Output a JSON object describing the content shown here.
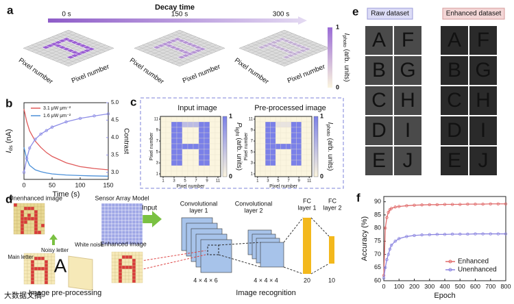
{
  "panel_labels": [
    "a",
    "b",
    "c",
    "d",
    "e",
    "f"
  ],
  "panel_a": {
    "title": "Decay time",
    "times": [
      "0 s",
      "150 s",
      "300 s"
    ],
    "axis_label": "Pixel number",
    "colorbar": {
      "label": [
        "I",
        "photo",
        " (arb. units)"
      ],
      "ticks": [
        0,
        1
      ]
    }
  },
  "panel_d": {
    "unenhanced": "Unenhanced image",
    "sensor": "Sensor Array Model",
    "input": "Input",
    "noisy": "Noisy letter",
    "white_noise": "White noise",
    "main_letter": "Main letter",
    "enhanced": "Enhanced image",
    "preprocessing": "Image pre-processing",
    "conv1": [
      "Convolutional",
      "layer 1"
    ],
    "conv2": [
      "Convolutional",
      "layer 2"
    ],
    "fc1": [
      "FC",
      "layer 1"
    ],
    "fc2": [
      "FC",
      "layer 2"
    ],
    "dims": [
      "4 × 4 × 6",
      "4 × 4 × 4",
      "20",
      "10"
    ],
    "recognition": "Image recognition",
    "letter": "A"
  },
  "panel_e": {
    "raw": "Raw dataset",
    "enhanced": "Enhanced dataset",
    "letters": [
      [
        "A",
        "F"
      ],
      [
        "B",
        "G"
      ],
      [
        "C",
        "H"
      ],
      [
        "D",
        "I"
      ],
      [
        "E",
        "J"
      ]
    ]
  },
  "watermark": "大数据文摘",
  "chart_data": [
    {
      "type": "line",
      "x_label": "Time (s)",
      "y_label": [
        "I",
        "ds",
        " (nA)"
      ],
      "y2_label": "Contrast",
      "x": [
        0,
        5,
        10,
        20,
        30,
        40,
        50,
        75,
        100,
        125,
        150
      ],
      "xlim": [
        0,
        150
      ],
      "xticks": [
        0,
        50,
        100,
        150
      ],
      "ylim": [
        0,
        60
      ],
      "y2lim": [
        2.8,
        5.0
      ],
      "y2ticks": [
        {
          "value": 3,
          "label": "3.0"
        },
        {
          "value": 3.5,
          "label": "3.5"
        },
        {
          "value": 4,
          "label": "4.0"
        },
        {
          "value": 4.5,
          "label": "4.5"
        },
        {
          "value": 5,
          "label": "5.0"
        }
      ],
      "legend": "upper right",
      "series": [
        {
          "name": "3.1 μW μm⁻²",
          "color": "#e05a5a",
          "values": [
            55,
            45,
            38,
            30,
            25,
            21,
            18,
            13,
            10,
            8.5,
            7.5
          ]
        },
        {
          "name": "1.6 μW μm⁻²",
          "color": "#4a8fd8",
          "values": [
            25,
            16,
            11,
            7.5,
            6,
            5,
            4.3,
            3.4,
            3,
            2.7,
            2.5
          ]
        },
        {
          "color": "#8c8ce6",
          "axis": "y2",
          "values": [
            3.0,
            3.4,
            3.7,
            3.95,
            4.1,
            4.2,
            4.3,
            4.45,
            4.55,
            4.62,
            4.68
          ]
        }
      ]
    },
    {
      "type": "heatmap",
      "title": "Input image",
      "x_label": "Pixel number",
      "y_label": "Pixel number",
      "color": "#7a80e8",
      "xlim": [
        0.5,
        11.5
      ],
      "ylim": [
        0.5,
        11.5
      ],
      "xticks": [
        1,
        3,
        5,
        7,
        9,
        11
      ],
      "yticks": [
        1,
        3,
        5,
        7,
        9,
        11
      ],
      "colorbar": {
        "label": [
          "P",
          "light",
          " (arb. units)"
        ],
        "ticks": [
          0,
          1
        ]
      },
      "values": [
        [
          0,
          0,
          0,
          0,
          0,
          0,
          0,
          0,
          0,
          0,
          0
        ],
        [
          0,
          0,
          1,
          1,
          0.5,
          0.5,
          0.5,
          1,
          1,
          0,
          0
        ],
        [
          0,
          0,
          1,
          1,
          0,
          0,
          0,
          1,
          1,
          0,
          0
        ],
        [
          0,
          0,
          1,
          1,
          0,
          0,
          0,
          1,
          1,
          0,
          0
        ],
        [
          0,
          0,
          1,
          1,
          0,
          0,
          0,
          1,
          1,
          0,
          0
        ],
        [
          0,
          0,
          1,
          1,
          1,
          1,
          1,
          1,
          1,
          0,
          0
        ],
        [
          0,
          0,
          1,
          1,
          0,
          0,
          0,
          1,
          1,
          0,
          0
        ],
        [
          0,
          0,
          1,
          1,
          0,
          0,
          0,
          1,
          1,
          0,
          0
        ],
        [
          0,
          0,
          1,
          1,
          0,
          0,
          0,
          1,
          1,
          0,
          0
        ],
        [
          0,
          0,
          0,
          0,
          0,
          0,
          0,
          0,
          0,
          0,
          0
        ],
        [
          0,
          0,
          0,
          0,
          0,
          0,
          0,
          0,
          0,
          0,
          0
        ]
      ]
    },
    {
      "type": "heatmap",
      "title": "Pre-processed image",
      "x_label": "Pixel number",
      "y_label": "Pixel number",
      "color": "#7a80e8",
      "xlim": [
        0.5,
        11.5
      ],
      "ylim": [
        0.5,
        11.5
      ],
      "xticks": [
        1,
        3,
        5,
        7,
        9,
        11
      ],
      "yticks": [
        1,
        3,
        5,
        7,
        9,
        11
      ],
      "colorbar": {
        "label": [
          "I",
          "photo",
          " (arb. units)"
        ],
        "ticks": [
          0,
          1
        ]
      },
      "values": [
        [
          0,
          0,
          0,
          0,
          0,
          0,
          0,
          0,
          0,
          0,
          0
        ],
        [
          0,
          0,
          1,
          1,
          0.15,
          0.15,
          0.15,
          1,
          1,
          0,
          0
        ],
        [
          0,
          0,
          1,
          1,
          0,
          0,
          0,
          1,
          1,
          0,
          0
        ],
        [
          0,
          0,
          1,
          1,
          0,
          0,
          0,
          1,
          1,
          0,
          0
        ],
        [
          0,
          0,
          1,
          1,
          0,
          0,
          0,
          1,
          1,
          0,
          0
        ],
        [
          0,
          0,
          1,
          1,
          1,
          1,
          1,
          1,
          1,
          0,
          0
        ],
        [
          0,
          0,
          1,
          1,
          0,
          0,
          0,
          1,
          1,
          0,
          0
        ],
        [
          0,
          0,
          1,
          1,
          0,
          0,
          0,
          1,
          1,
          0,
          0
        ],
        [
          0,
          0,
          1,
          1,
          0,
          0,
          0,
          1,
          1,
          0,
          0
        ],
        [
          0,
          0,
          0,
          0,
          0,
          0,
          0,
          0,
          0,
          0,
          0
        ],
        [
          0,
          0,
          0,
          0,
          0,
          0,
          0,
          0,
          0,
          0,
          0
        ]
      ]
    },
    {
      "type": "line",
      "x_label": "Epoch",
      "y_label": "Accuracy (%)",
      "markers": true,
      "legend": "lower right",
      "x": [
        0,
        10,
        20,
        30,
        40,
        50,
        75,
        100,
        150,
        200,
        250,
        300,
        350,
        400,
        450,
        500,
        550,
        600,
        650,
        700,
        750,
        800
      ],
      "xlim": [
        0,
        800
      ],
      "xticks": [
        0,
        100,
        200,
        300,
        400,
        500,
        600,
        700,
        800
      ],
      "ylim": [
        60,
        92
      ],
      "yticks": [
        60,
        65,
        70,
        75,
        80,
        85,
        90
      ],
      "series": [
        {
          "name": "Enhanced",
          "color": "#e06a6a",
          "values": [
            62,
            80,
            84,
            86,
            87,
            87.5,
            88,
            88.2,
            88.5,
            88.7,
            88.8,
            88.9,
            88.9,
            89,
            89,
            89,
            89.1,
            89.1,
            89.1,
            89.2,
            89.2,
            89.2
          ]
        },
        {
          "name": "Unenhanced",
          "color": "#8a84e0",
          "values": [
            61,
            65,
            68,
            70,
            72,
            73.5,
            75,
            76,
            76.8,
            77.2,
            77.4,
            77.5,
            77.6,
            77.6,
            77.7,
            77.7,
            77.7,
            77.8,
            77.8,
            77.8,
            77.8,
            77.8
          ]
        }
      ]
    }
  ]
}
